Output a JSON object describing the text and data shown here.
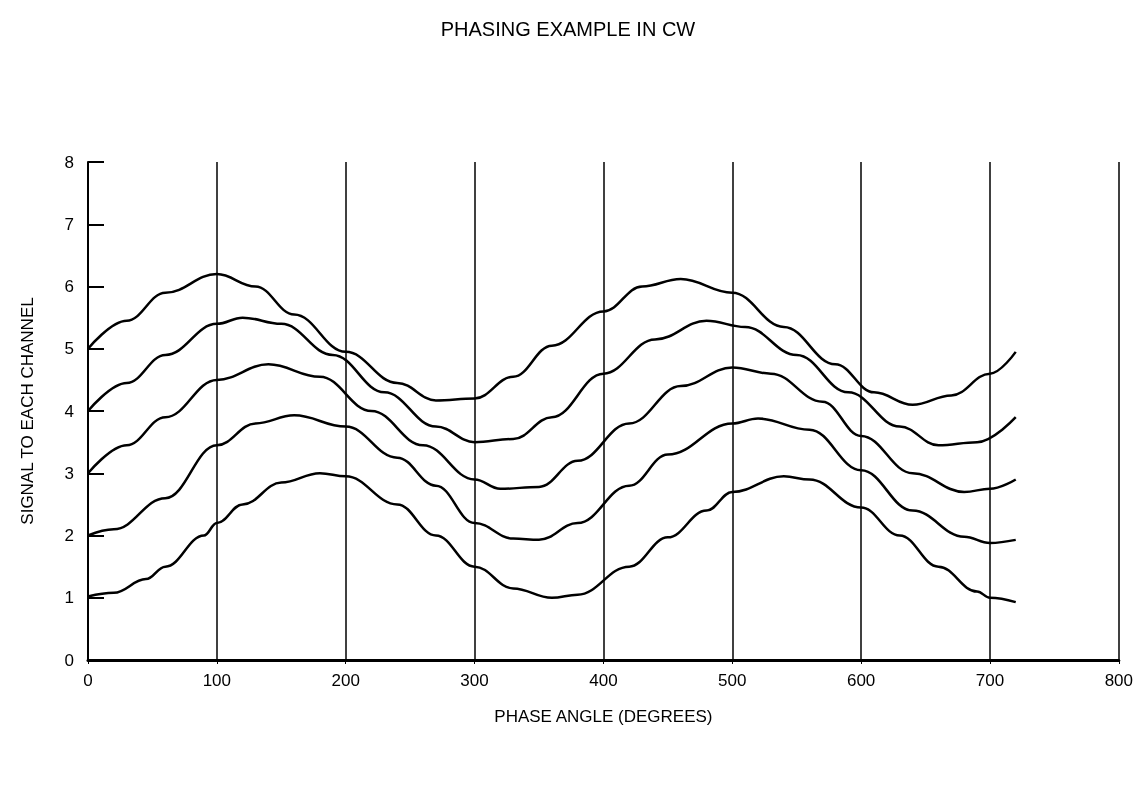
{
  "chart_data": {
    "type": "line",
    "title": "PHASING EXAMPLE IN CW",
    "xlabel": "PHASE ANGLE (DEGREES)",
    "ylabel": "SIGNAL TO EACH CHANNEL",
    "xlim": [
      0,
      800
    ],
    "xticks": [
      0,
      100,
      200,
      300,
      400,
      500,
      600,
      700,
      800
    ],
    "ylim": [
      0,
      8
    ],
    "yticks": [
      0,
      1,
      2,
      3,
      4,
      5,
      6,
      7,
      8
    ],
    "grid": "x",
    "marker": "none",
    "line_style": "solid",
    "series": [
      {
        "color": "#000000",
        "x": [
          0,
          20,
          45,
          60,
          90,
          100,
          120,
          150,
          180,
          200,
          240,
          270,
          300,
          330,
          360,
          380,
          420,
          450,
          480,
          500,
          540,
          560,
          600,
          630,
          660,
          690,
          700,
          720
        ],
        "values": [
          1.02,
          1.08,
          1.3,
          1.5,
          2.0,
          2.2,
          2.5,
          2.85,
          3.0,
          2.95,
          2.5,
          2.0,
          1.5,
          1.15,
          1.0,
          1.05,
          1.5,
          1.97,
          2.4,
          2.7,
          2.95,
          2.9,
          2.45,
          2.0,
          1.5,
          1.1,
          1.0,
          0.93
        ]
      },
      {
        "color": "#000000",
        "x": [
          0,
          20,
          60,
          100,
          130,
          160,
          200,
          240,
          270,
          300,
          330,
          350,
          380,
          420,
          450,
          500,
          520,
          560,
          600,
          640,
          680,
          700,
          720
        ],
        "values": [
          2.0,
          2.1,
          2.6,
          3.45,
          3.8,
          3.93,
          3.75,
          3.25,
          2.8,
          2.2,
          1.95,
          1.93,
          2.2,
          2.8,
          3.3,
          3.8,
          3.88,
          3.7,
          3.05,
          2.4,
          1.98,
          1.88,
          1.93
        ]
      },
      {
        "color": "#000000",
        "x": [
          0,
          30,
          60,
          100,
          140,
          180,
          220,
          260,
          300,
          320,
          350,
          380,
          420,
          460,
          500,
          530,
          570,
          600,
          640,
          680,
          700,
          720
        ],
        "values": [
          3.0,
          3.45,
          3.9,
          4.5,
          4.75,
          4.55,
          4.0,
          3.45,
          2.9,
          2.75,
          2.78,
          3.2,
          3.8,
          4.4,
          4.7,
          4.6,
          4.15,
          3.6,
          3.0,
          2.7,
          2.75,
          2.9
        ]
      },
      {
        "color": "#000000",
        "x": [
          0,
          30,
          60,
          100,
          120,
          150,
          190,
          230,
          270,
          300,
          330,
          360,
          400,
          440,
          480,
          510,
          550,
          590,
          630,
          660,
          690,
          720
        ],
        "values": [
          4.0,
          4.45,
          4.9,
          5.4,
          5.5,
          5.4,
          4.9,
          4.3,
          3.75,
          3.5,
          3.55,
          3.9,
          4.6,
          5.15,
          5.45,
          5.35,
          4.9,
          4.3,
          3.75,
          3.45,
          3.5,
          3.9
        ]
      },
      {
        "color": "#000000",
        "x": [
          0,
          30,
          60,
          100,
          130,
          160,
          200,
          240,
          270,
          300,
          330,
          360,
          400,
          430,
          460,
          500,
          540,
          580,
          610,
          640,
          670,
          700,
          720
        ],
        "values": [
          5.0,
          5.45,
          5.9,
          6.2,
          6.0,
          5.55,
          4.95,
          4.45,
          4.17,
          4.2,
          4.55,
          5.05,
          5.6,
          6.0,
          6.12,
          5.9,
          5.35,
          4.75,
          4.3,
          4.1,
          4.25,
          4.6,
          4.95
        ]
      }
    ]
  }
}
